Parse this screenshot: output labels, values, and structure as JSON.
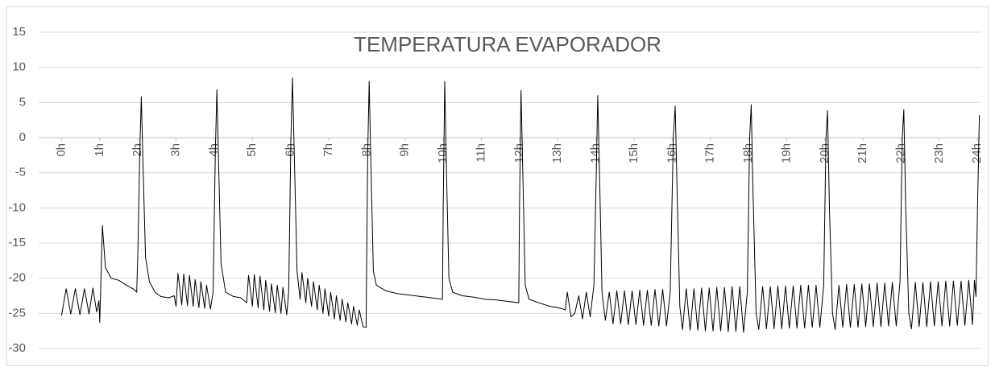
{
  "chart_data": {
    "type": "line",
    "title": "TEMPERATURA EVAPORADOR",
    "color": "#000000",
    "grid": true,
    "xlim": [
      -0.6,
      24.1
    ],
    "ylim": [
      -30,
      15
    ],
    "yticks": [
      15,
      10,
      5,
      0,
      -5,
      -10,
      -15,
      -20,
      -25,
      -30
    ],
    "xticks": [
      {
        "value": 0,
        "label": "0h"
      },
      {
        "value": 1,
        "label": "1h"
      },
      {
        "value": 2,
        "label": "2h"
      },
      {
        "value": 3,
        "label": "3h"
      },
      {
        "value": 4,
        "label": "4h"
      },
      {
        "value": 5,
        "label": "5h"
      },
      {
        "value": 6,
        "label": "6h"
      },
      {
        "value": 7,
        "label": "7h"
      },
      {
        "value": 8,
        "label": "8h"
      },
      {
        "value": 9,
        "label": "9h"
      },
      {
        "value": 10,
        "label": "10h"
      },
      {
        "value": 11,
        "label": "11h"
      },
      {
        "value": 12,
        "label": "12h"
      },
      {
        "value": 13,
        "label": "13h"
      },
      {
        "value": 14,
        "label": "14h"
      },
      {
        "value": 15,
        "label": "15h"
      },
      {
        "value": 16,
        "label": "16h"
      },
      {
        "value": 17,
        "label": "17h"
      },
      {
        "value": 18,
        "label": "18h"
      },
      {
        "value": 19,
        "label": "19h"
      },
      {
        "value": 20,
        "label": "20h"
      },
      {
        "value": 21,
        "label": "21h"
      },
      {
        "value": 22,
        "label": "22h"
      },
      {
        "value": 23,
        "label": "23h"
      },
      {
        "value": 24,
        "label": "24h"
      }
    ],
    "x": [
      0,
      0.12,
      0.24,
      0.36,
      0.48,
      0.6,
      0.72,
      0.82,
      0.92,
      0.98,
      1.0,
      1.07,
      1.15,
      1.3,
      1.5,
      1.7,
      1.9,
      1.97,
      2.0,
      2.05,
      2.09,
      2.14,
      2.2,
      2.3,
      2.45,
      2.6,
      2.8,
      2.95,
      3.0,
      3.05,
      3.15,
      3.2,
      3.3,
      3.35,
      3.45,
      3.5,
      3.6,
      3.65,
      3.75,
      3.8,
      3.9,
      3.97,
      4.03,
      4.07,
      4.12,
      4.18,
      4.3,
      4.5,
      4.7,
      4.85,
      4.9,
      5.0,
      5.05,
      5.15,
      5.2,
      5.3,
      5.35,
      5.45,
      5.5,
      5.6,
      5.65,
      5.75,
      5.8,
      5.9,
      5.95,
      6.01,
      6.05,
      6.1,
      6.17,
      6.25,
      6.3,
      6.4,
      6.45,
      6.55,
      6.6,
      6.7,
      6.75,
      6.85,
      6.9,
      7.0,
      7.05,
      7.15,
      7.2,
      7.3,
      7.35,
      7.45,
      7.5,
      7.6,
      7.65,
      7.75,
      7.8,
      7.9,
      7.98,
      8.02,
      8.06,
      8.11,
      8.17,
      8.25,
      8.5,
      8.8,
      9.1,
      9.4,
      9.7,
      9.98,
      10.0,
      10.04,
      10.09,
      10.15,
      10.25,
      10.5,
      10.8,
      11.1,
      11.4,
      11.7,
      11.98,
      12.0,
      12.04,
      12.09,
      12.15,
      12.25,
      12.5,
      12.8,
      13.1,
      13.2,
      13.25,
      13.35,
      13.45,
      13.55,
      13.65,
      13.75,
      13.85,
      13.95,
      14.01,
      14.05,
      14.1,
      14.16,
      14.25,
      14.35,
      14.45,
      14.55,
      14.65,
      14.75,
      14.85,
      14.95,
      15.05,
      15.15,
      15.25,
      15.35,
      15.45,
      15.55,
      15.65,
      15.75,
      15.85,
      15.95,
      16.03,
      16.08,
      16.13,
      16.2,
      16.27,
      16.37,
      16.47,
      16.57,
      16.67,
      16.77,
      16.87,
      16.97,
      17.07,
      17.17,
      17.27,
      17.37,
      17.47,
      17.57,
      17.67,
      17.77,
      17.87,
      17.97,
      18.03,
      18.07,
      18.12,
      18.2,
      18.27,
      18.37,
      18.47,
      18.57,
      18.67,
      18.77,
      18.87,
      18.97,
      19.07,
      19.17,
      19.27,
      19.37,
      19.47,
      19.57,
      19.67,
      19.77,
      19.87,
      19.97,
      20.03,
      20.07,
      20.12,
      20.2,
      20.27,
      20.37,
      20.47,
      20.57,
      20.67,
      20.77,
      20.87,
      20.97,
      21.07,
      21.17,
      21.27,
      21.37,
      21.47,
      21.57,
      21.67,
      21.77,
      21.87,
      21.97,
      22.03,
      22.07,
      22.12,
      22.2,
      22.27,
      22.37,
      22.47,
      22.57,
      22.67,
      22.77,
      22.87,
      22.97,
      23.07,
      23.17,
      23.27,
      23.37,
      23.47,
      23.57,
      23.67,
      23.77,
      23.87,
      23.92,
      23.96,
      24.0,
      24.05
    ],
    "values": [
      -25.3,
      -21.5,
      -25.1,
      -21.5,
      -25.2,
      -21.5,
      -25.1,
      -21.4,
      -24.8,
      -23.2,
      -26.3,
      -12.5,
      -18.5,
      -20,
      -20.3,
      -21,
      -21.6,
      -22,
      -16,
      -2,
      5.8,
      -5,
      -17,
      -20.5,
      -22,
      -22.6,
      -22.8,
      -22.5,
      -24,
      -19.3,
      -23.8,
      -19.4,
      -23.9,
      -19.6,
      -24,
      -20.2,
      -24.2,
      -20.5,
      -24.3,
      -21,
      -24.4,
      -22,
      -2,
      6.8,
      -5,
      -18,
      -22,
      -22.6,
      -22.8,
      -23.5,
      -19.6,
      -24,
      -19.5,
      -24.2,
      -19.7,
      -24.5,
      -20.3,
      -24.7,
      -20.8,
      -24.9,
      -21,
      -25,
      -21.3,
      -25.2,
      -22,
      0,
      8.5,
      -3,
      -19,
      -23,
      -19.2,
      -23.5,
      -20,
      -24,
      -20.5,
      -24.5,
      -21,
      -25,
      -21.5,
      -25.4,
      -22,
      -25.8,
      -22.5,
      -26,
      -23,
      -26.2,
      -23.5,
      -26.5,
      -24,
      -26.7,
      -24.5,
      -26.9,
      -27,
      -3,
      8,
      -5,
      -19,
      -21,
      -21.8,
      -22.2,
      -22.4,
      -22.6,
      -22.8,
      -23,
      -10,
      8,
      -6,
      -20,
      -22,
      -22.5,
      -22.7,
      -23,
      -23.1,
      -23.3,
      -23.5,
      -10,
      6.7,
      -6,
      -21,
      -23,
      -23.5,
      -24,
      -24.3,
      -24.5,
      -22,
      -25.5,
      -25,
      -22.5,
      -25.8,
      -22,
      -25.5,
      -21,
      -5,
      6,
      -6,
      -22,
      -26,
      -22,
      -26.5,
      -21.8,
      -26.5,
      -21.8,
      -26.6,
      -21.8,
      -26.6,
      -21.7,
      -26.7,
      -21.7,
      -26.7,
      -21.6,
      -26.8,
      -21.6,
      -26.8,
      -22,
      0,
      4.5,
      -8,
      -24,
      -27.3,
      -21.5,
      -27.4,
      -21.5,
      -27.4,
      -21.4,
      -27.5,
      -21.4,
      -27.5,
      -21.3,
      -27.5,
      -21.3,
      -27.6,
      -21.2,
      -27.6,
      -21.2,
      -27.7,
      -22,
      0,
      4.7,
      -8,
      -25,
      -27.3,
      -21.2,
      -27.2,
      -21.2,
      -27.2,
      -21.1,
      -27.2,
      -21.1,
      -27.1,
      -21.1,
      -27.1,
      -21,
      -27.1,
      -21,
      -27,
      -21,
      -27,
      -21,
      0,
      3.8,
      -10,
      -25,
      -27.3,
      -21,
      -27,
      -20.9,
      -27,
      -20.9,
      -27,
      -20.8,
      -26.9,
      -20.8,
      -26.9,
      -20.7,
      -26.9,
      -20.7,
      -26.8,
      -20.6,
      -26.8,
      -20.5,
      0,
      4,
      -10,
      -25,
      -27.2,
      -20.6,
      -26.9,
      -20.6,
      -26.9,
      -20.5,
      -26.8,
      -20.5,
      -26.8,
      -20.4,
      -26.8,
      -20.4,
      -26.7,
      -20.4,
      -26.7,
      -20.3,
      -26.6,
      -20.3,
      -22.6,
      -10,
      3.2
    ]
  }
}
